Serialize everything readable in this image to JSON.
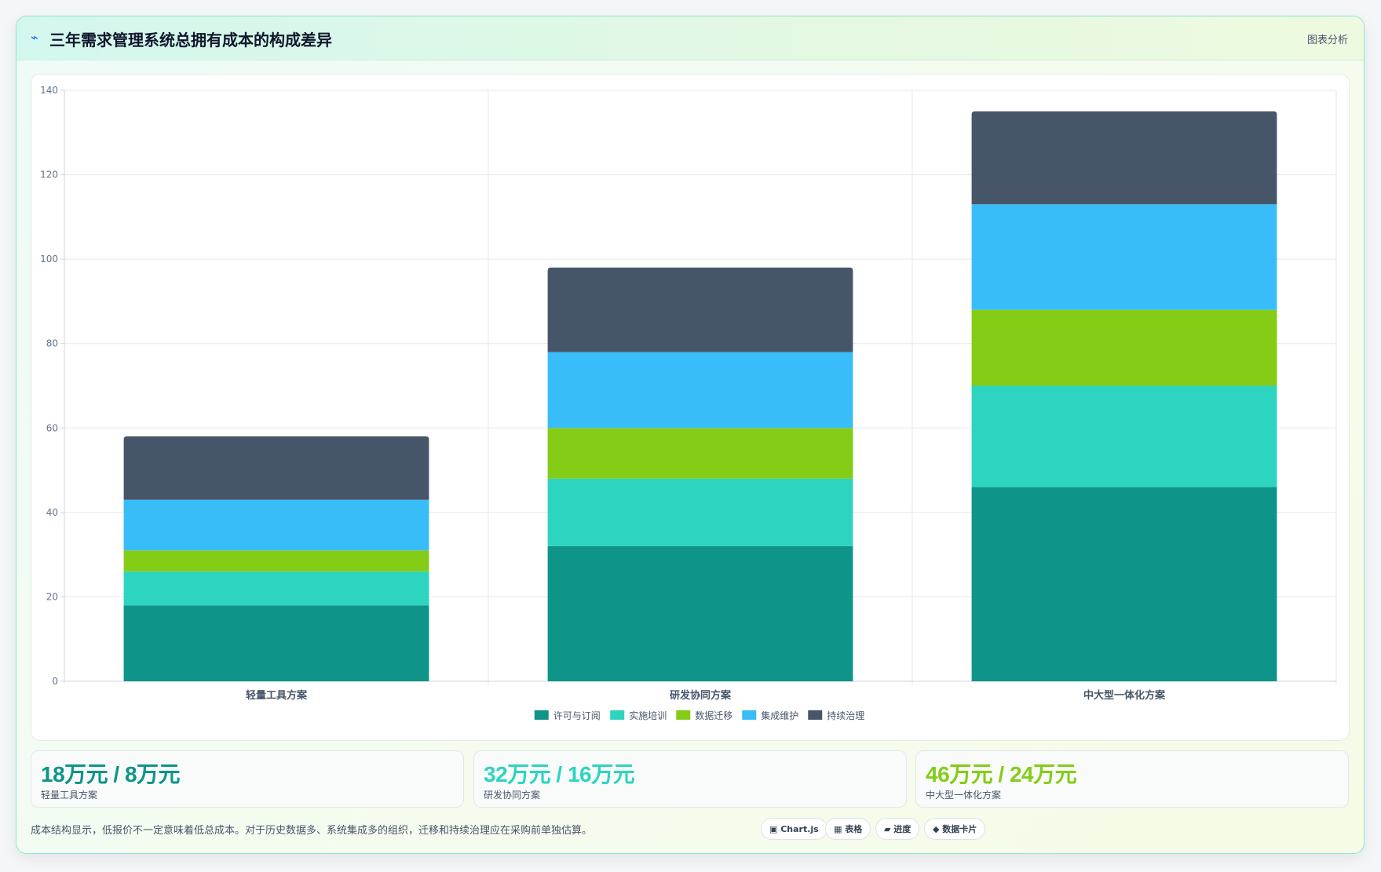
{
  "header": {
    "icon": "lightning-icon",
    "title": "三年需求管理系统总拥有成本的构成差异",
    "link": "图表分析"
  },
  "chart_data": {
    "type": "bar",
    "stacked": true,
    "categories": [
      "轻量工具方案",
      "研发协同方案",
      "中大型一体化方案"
    ],
    "series": [
      {
        "name": "许可与订阅",
        "color": "#0e9488",
        "values": [
          18,
          32,
          46
        ]
      },
      {
        "name": "实施培训",
        "color": "#2dd4bf",
        "values": [
          8,
          16,
          24
        ]
      },
      {
        "name": "数据迁移",
        "color": "#84cc16",
        "values": [
          5,
          12,
          18
        ]
      },
      {
        "name": "集成维护",
        "color": "#38bdf8",
        "values": [
          12,
          18,
          25
        ]
      },
      {
        "name": "持续治理",
        "color": "#475569",
        "values": [
          15,
          20,
          22
        ]
      }
    ],
    "ylim": [
      0,
      140
    ],
    "yticks": [
      0,
      20,
      40,
      60,
      80,
      100,
      120,
      140
    ],
    "grid": true,
    "legend": "bottom-center"
  },
  "kpis": [
    {
      "value": "18万元 / 8万元",
      "label": "轻量工具方案",
      "color": "#0e9488"
    },
    {
      "value": "32万元 / 16万元",
      "label": "研发协同方案",
      "color": "#2dd4bf"
    },
    {
      "value": "46万元 / 24万元",
      "label": "中大型一体化方案",
      "color": "#84cc16"
    }
  ],
  "footnote": "成本结构显示，低报价不一定意味着低总成本。对于历史数据多、系统集成多的组织，迁移和持续治理应在采购前单独估算。",
  "chips": [
    {
      "label": "▣ Chart.js"
    },
    {
      "label": "▦ 表格"
    },
    {
      "label": "▰ 进度"
    },
    {
      "label": "◆ 数据卡片"
    }
  ]
}
